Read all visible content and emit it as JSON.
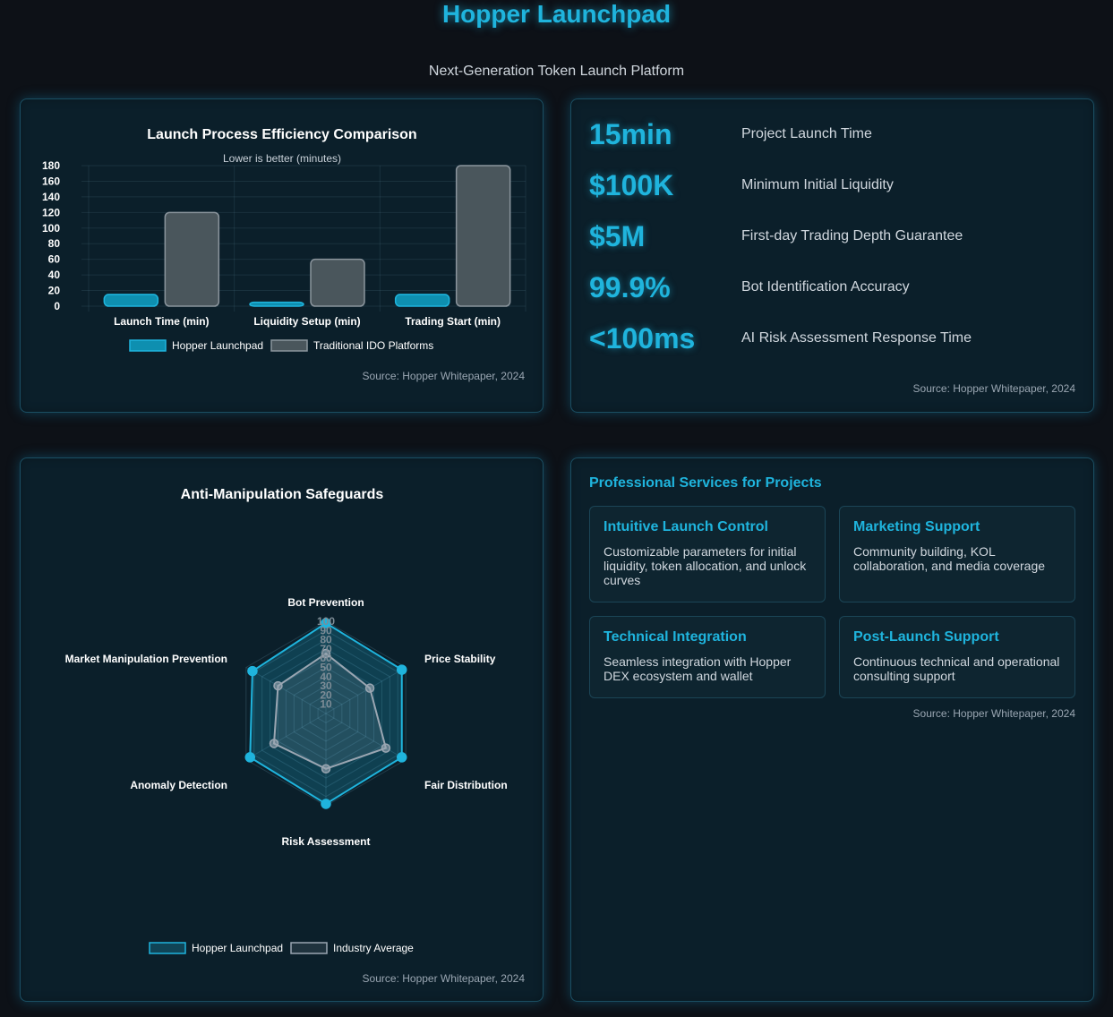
{
  "header": {
    "title": "Hopper Launchpad",
    "subtitle": "Next-Generation Token Launch Platform"
  },
  "colors": {
    "accent": "#1fb4dd",
    "hopper": "#0e8fb0",
    "traditional": "#4a565c",
    "background": "#0d1117",
    "card": "#0b1f2a"
  },
  "chart_data": [
    {
      "type": "bar",
      "title": "Launch Process Efficiency Comparison",
      "subtitle": "Lower is better (minutes)",
      "categories": [
        "Launch Time (min)",
        "Liquidity Setup (min)",
        "Trading Start (min)"
      ],
      "series": [
        {
          "name": "Hopper Launchpad",
          "values": [
            15,
            5,
            15
          ],
          "color": "#0e8fb0"
        },
        {
          "name": "Traditional IDO Platforms",
          "values": [
            120,
            60,
            180
          ],
          "color": "#4a565c"
        }
      ],
      "yticks": [
        "0",
        "20",
        "40",
        "60",
        "80",
        "100",
        "120",
        "140",
        "160",
        "180"
      ],
      "ylim": [
        0,
        180
      ],
      "grid": true,
      "legend": "bottom",
      "source": "Source: Hopper Whitepaper, 2024"
    },
    {
      "type": "radar",
      "title": "Anti-Manipulation Safeguards",
      "axes": [
        "Bot Prevention",
        "Price Stability",
        "Fair Distribution",
        "Risk Assessment",
        "Anomaly Detection",
        "Market Manipulation Prevention"
      ],
      "rticks": [
        "10",
        "20",
        "30",
        "40",
        "50",
        "60",
        "70",
        "80",
        "90",
        "100"
      ],
      "rlim": [
        0,
        100
      ],
      "series": [
        {
          "name": "Hopper Launchpad",
          "values": [
            98,
            95,
            95,
            98,
            95,
            92
          ],
          "color": "#1fb4dd"
        },
        {
          "name": "Industry Average",
          "values": [
            65,
            55,
            75,
            60,
            65,
            60
          ],
          "color": "#9aa6b2"
        }
      ],
      "legend": "bottom",
      "source": "Source: Hopper Whitepaper, 2024"
    }
  ],
  "stats": {
    "items": [
      {
        "value": "15min",
        "label": "Project Launch Time"
      },
      {
        "value": "$100K",
        "label": "Minimum Initial Liquidity"
      },
      {
        "value": "$5M",
        "label": "First-day Trading Depth Guarantee"
      },
      {
        "value": "99.9%",
        "label": "Bot Identification Accuracy"
      },
      {
        "value": "<100ms",
        "label": "AI Risk Assessment Response Time"
      }
    ],
    "source": "Source: Hopper Whitepaper, 2024"
  },
  "services": {
    "heading": "Professional Services for Projects",
    "items": [
      {
        "title": "Intuitive Launch Control",
        "desc": "Customizable parameters for initial liquidity, token allocation, and unlock curves"
      },
      {
        "title": "Marketing Support",
        "desc": "Community building, KOL collaboration, and media coverage"
      },
      {
        "title": "Technical Integration",
        "desc": "Seamless integration with Hopper DEX ecosystem and wallet"
      },
      {
        "title": "Post-Launch Support",
        "desc": "Continuous technical and operational consulting support"
      }
    ],
    "source": "Source: Hopper Whitepaper, 2024"
  }
}
